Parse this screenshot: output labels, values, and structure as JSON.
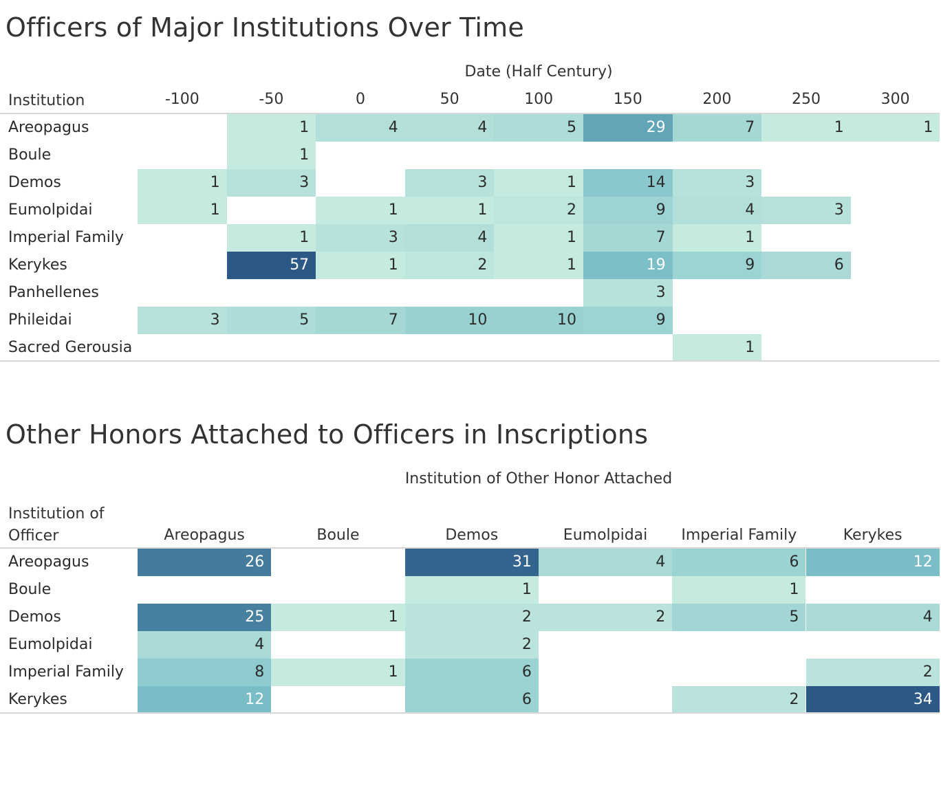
{
  "chart_data": [
    {
      "type": "heatmap",
      "title": "Officers of Major Institutions Over Time",
      "xlabel": "Date (Half Century)",
      "ylabel": "Institution",
      "columns": [
        "-100",
        "-50",
        "0",
        "50",
        "100",
        "150",
        "200",
        "250",
        "300"
      ],
      "rows": [
        "Areopagus",
        "Boule",
        "Demos",
        "Eumolpidai",
        "Imperial Family",
        "Kerykes",
        "Panhellenes",
        "Phileidai",
        "Sacred Gerousia"
      ],
      "values": [
        [
          null,
          1,
          4,
          4,
          5,
          29,
          7,
          1,
          1
        ],
        [
          null,
          1,
          null,
          null,
          null,
          null,
          null,
          null,
          null
        ],
        [
          1,
          3,
          null,
          3,
          1,
          14,
          3,
          null,
          null
        ],
        [
          1,
          null,
          1,
          1,
          2,
          9,
          4,
          3,
          null
        ],
        [
          null,
          1,
          3,
          4,
          1,
          7,
          1,
          null,
          null
        ],
        [
          null,
          57,
          1,
          2,
          1,
          19,
          9,
          6,
          null
        ],
        [
          null,
          null,
          null,
          null,
          null,
          3,
          null,
          null,
          null
        ],
        [
          3,
          5,
          7,
          10,
          10,
          9,
          null,
          null,
          null
        ],
        [
          null,
          null,
          null,
          null,
          null,
          null,
          1,
          null,
          null
        ]
      ],
      "max_value": 57
    },
    {
      "type": "heatmap",
      "title": "Other Honors Attached to Officers in Inscriptions",
      "xlabel": "Institution of Other Honor Attached",
      "ylabel": "Institution of Officer",
      "columns": [
        "Areopagus",
        "Boule",
        "Demos",
        "Eumolpidai",
        "Imperial Family",
        "Kerykes"
      ],
      "rows": [
        "Areopagus",
        "Boule",
        "Demos",
        "Eumolpidai",
        "Imperial Family",
        "Kerykes"
      ],
      "values": [
        [
          26,
          null,
          31,
          4,
          6,
          12
        ],
        [
          null,
          null,
          1,
          null,
          1,
          null
        ],
        [
          25,
          1,
          2,
          2,
          5,
          4
        ],
        [
          4,
          null,
          2,
          null,
          null,
          null
        ],
        [
          8,
          1,
          6,
          null,
          null,
          2
        ],
        [
          12,
          null,
          6,
          null,
          2,
          34
        ]
      ],
      "max_value": 34
    }
  ],
  "colors": {
    "scale_low": "#c5ebe0",
    "scale_mid": "#6fb7c3",
    "scale_high": "#2c5886",
    "text_dark": "#2b2b2b",
    "text_light": "#ffffff"
  }
}
